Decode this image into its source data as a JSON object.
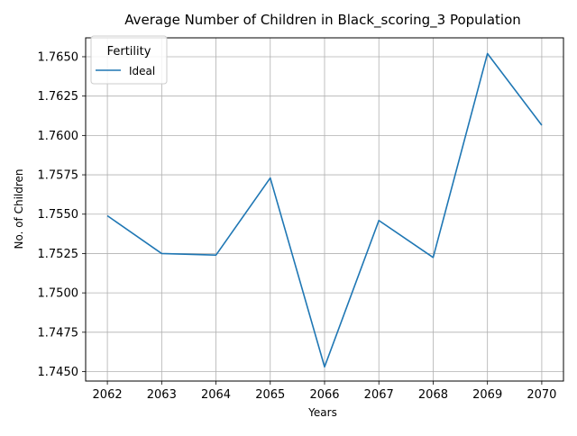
{
  "chart_data": {
    "type": "line",
    "title": "Average Number of Children in Black_scoring_3 Population",
    "xlabel": "Years",
    "ylabel": "No. of Children",
    "x": [
      2062,
      2063,
      2064,
      2065,
      2066,
      2067,
      2068,
      2069,
      2070
    ],
    "series": [
      {
        "name": "Ideal",
        "color": "#1f77b4",
        "values": [
          1.7549,
          1.7525,
          1.7524,
          1.7573,
          1.7453,
          1.7546,
          1.75225,
          1.7652,
          1.76065
        ]
      }
    ],
    "xticks": [
      "2062",
      "2063",
      "2064",
      "2065",
      "2066",
      "2067",
      "2068",
      "2069",
      "2070"
    ],
    "yticks": [
      "1.7450",
      "1.7475",
      "1.7500",
      "1.7525",
      "1.7550",
      "1.7575",
      "1.7600",
      "1.7625",
      "1.7650"
    ],
    "xlim": [
      2061.6,
      2070.4
    ],
    "ylim": [
      1.7444,
      1.7662
    ],
    "grid": true,
    "legend": {
      "title": "Fertility",
      "placement": "top-left"
    }
  }
}
